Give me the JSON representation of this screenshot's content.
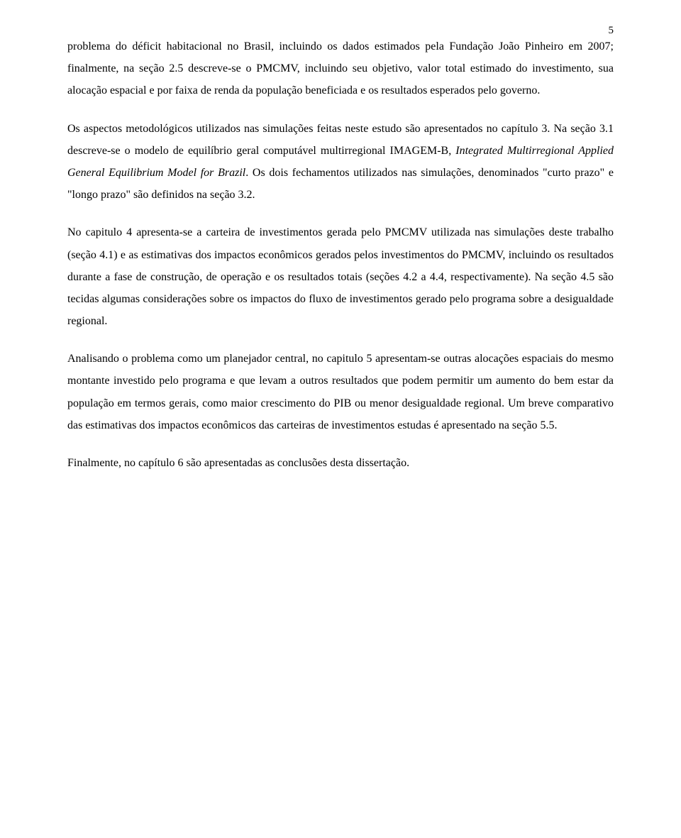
{
  "page_number": "5",
  "paragraphs": [
    {
      "parts": [
        {
          "text": "problema do déficit habitacional no Brasil, incluindo os dados estimados pela Fundação João Pinheiro em 2007; finalmente, na seção 2.5 descreve-se o PMCMV, incluindo seu objetivo, valor total estimado do investimento, sua alocação espacial e por faixa de renda da população beneficiada e os resultados esperados pelo governo.",
          "italic": false
        }
      ]
    },
    {
      "parts": [
        {
          "text": "Os aspectos metodológicos utilizados nas simulações feitas neste estudo são apresentados no capítulo 3. Na seção 3.1 descreve-se o modelo de equilíbrio geral computável multirregional IMAGEM-B, ",
          "italic": false
        },
        {
          "text": "Integrated Multirregional Applied General Equilibrium Model for Brazil",
          "italic": true
        },
        {
          "text": ". Os dois fechamentos utilizados nas simulações, denominados \"curto prazo\" e \"longo prazo\" são definidos na seção 3.2.",
          "italic": false
        }
      ]
    },
    {
      "parts": [
        {
          "text": "No capitulo 4 apresenta-se a carteira de investimentos gerada pelo PMCMV utilizada nas simulações deste trabalho (seção 4.1) e as estimativas dos impactos econômicos gerados pelos investimentos do PMCMV, incluindo os resultados durante a fase de construção, de operação e os resultados totais (seções 4.2 a 4.4, respectivamente). Na seção 4.5 são tecidas algumas considerações sobre os impactos do fluxo de investimentos gerado pelo programa sobre a desigualdade regional.",
          "italic": false
        }
      ]
    },
    {
      "parts": [
        {
          "text": "Analisando o problema como um planejador central, no capitulo 5 apresentam-se outras alocações espaciais do mesmo montante investido pelo programa e que levam a outros resultados que podem permitir um aumento do bem estar da população em termos gerais, como maior crescimento do PIB ou menor desigualdade regional. Um breve comparativo das estimativas dos impactos econômicos das carteiras de investimentos estudas é apresentado na seção 5.5.",
          "italic": false
        }
      ]
    },
    {
      "parts": [
        {
          "text": "Finalmente, no capítulo 6 são apresentadas as conclusões desta dissertação.",
          "italic": false
        }
      ]
    }
  ]
}
